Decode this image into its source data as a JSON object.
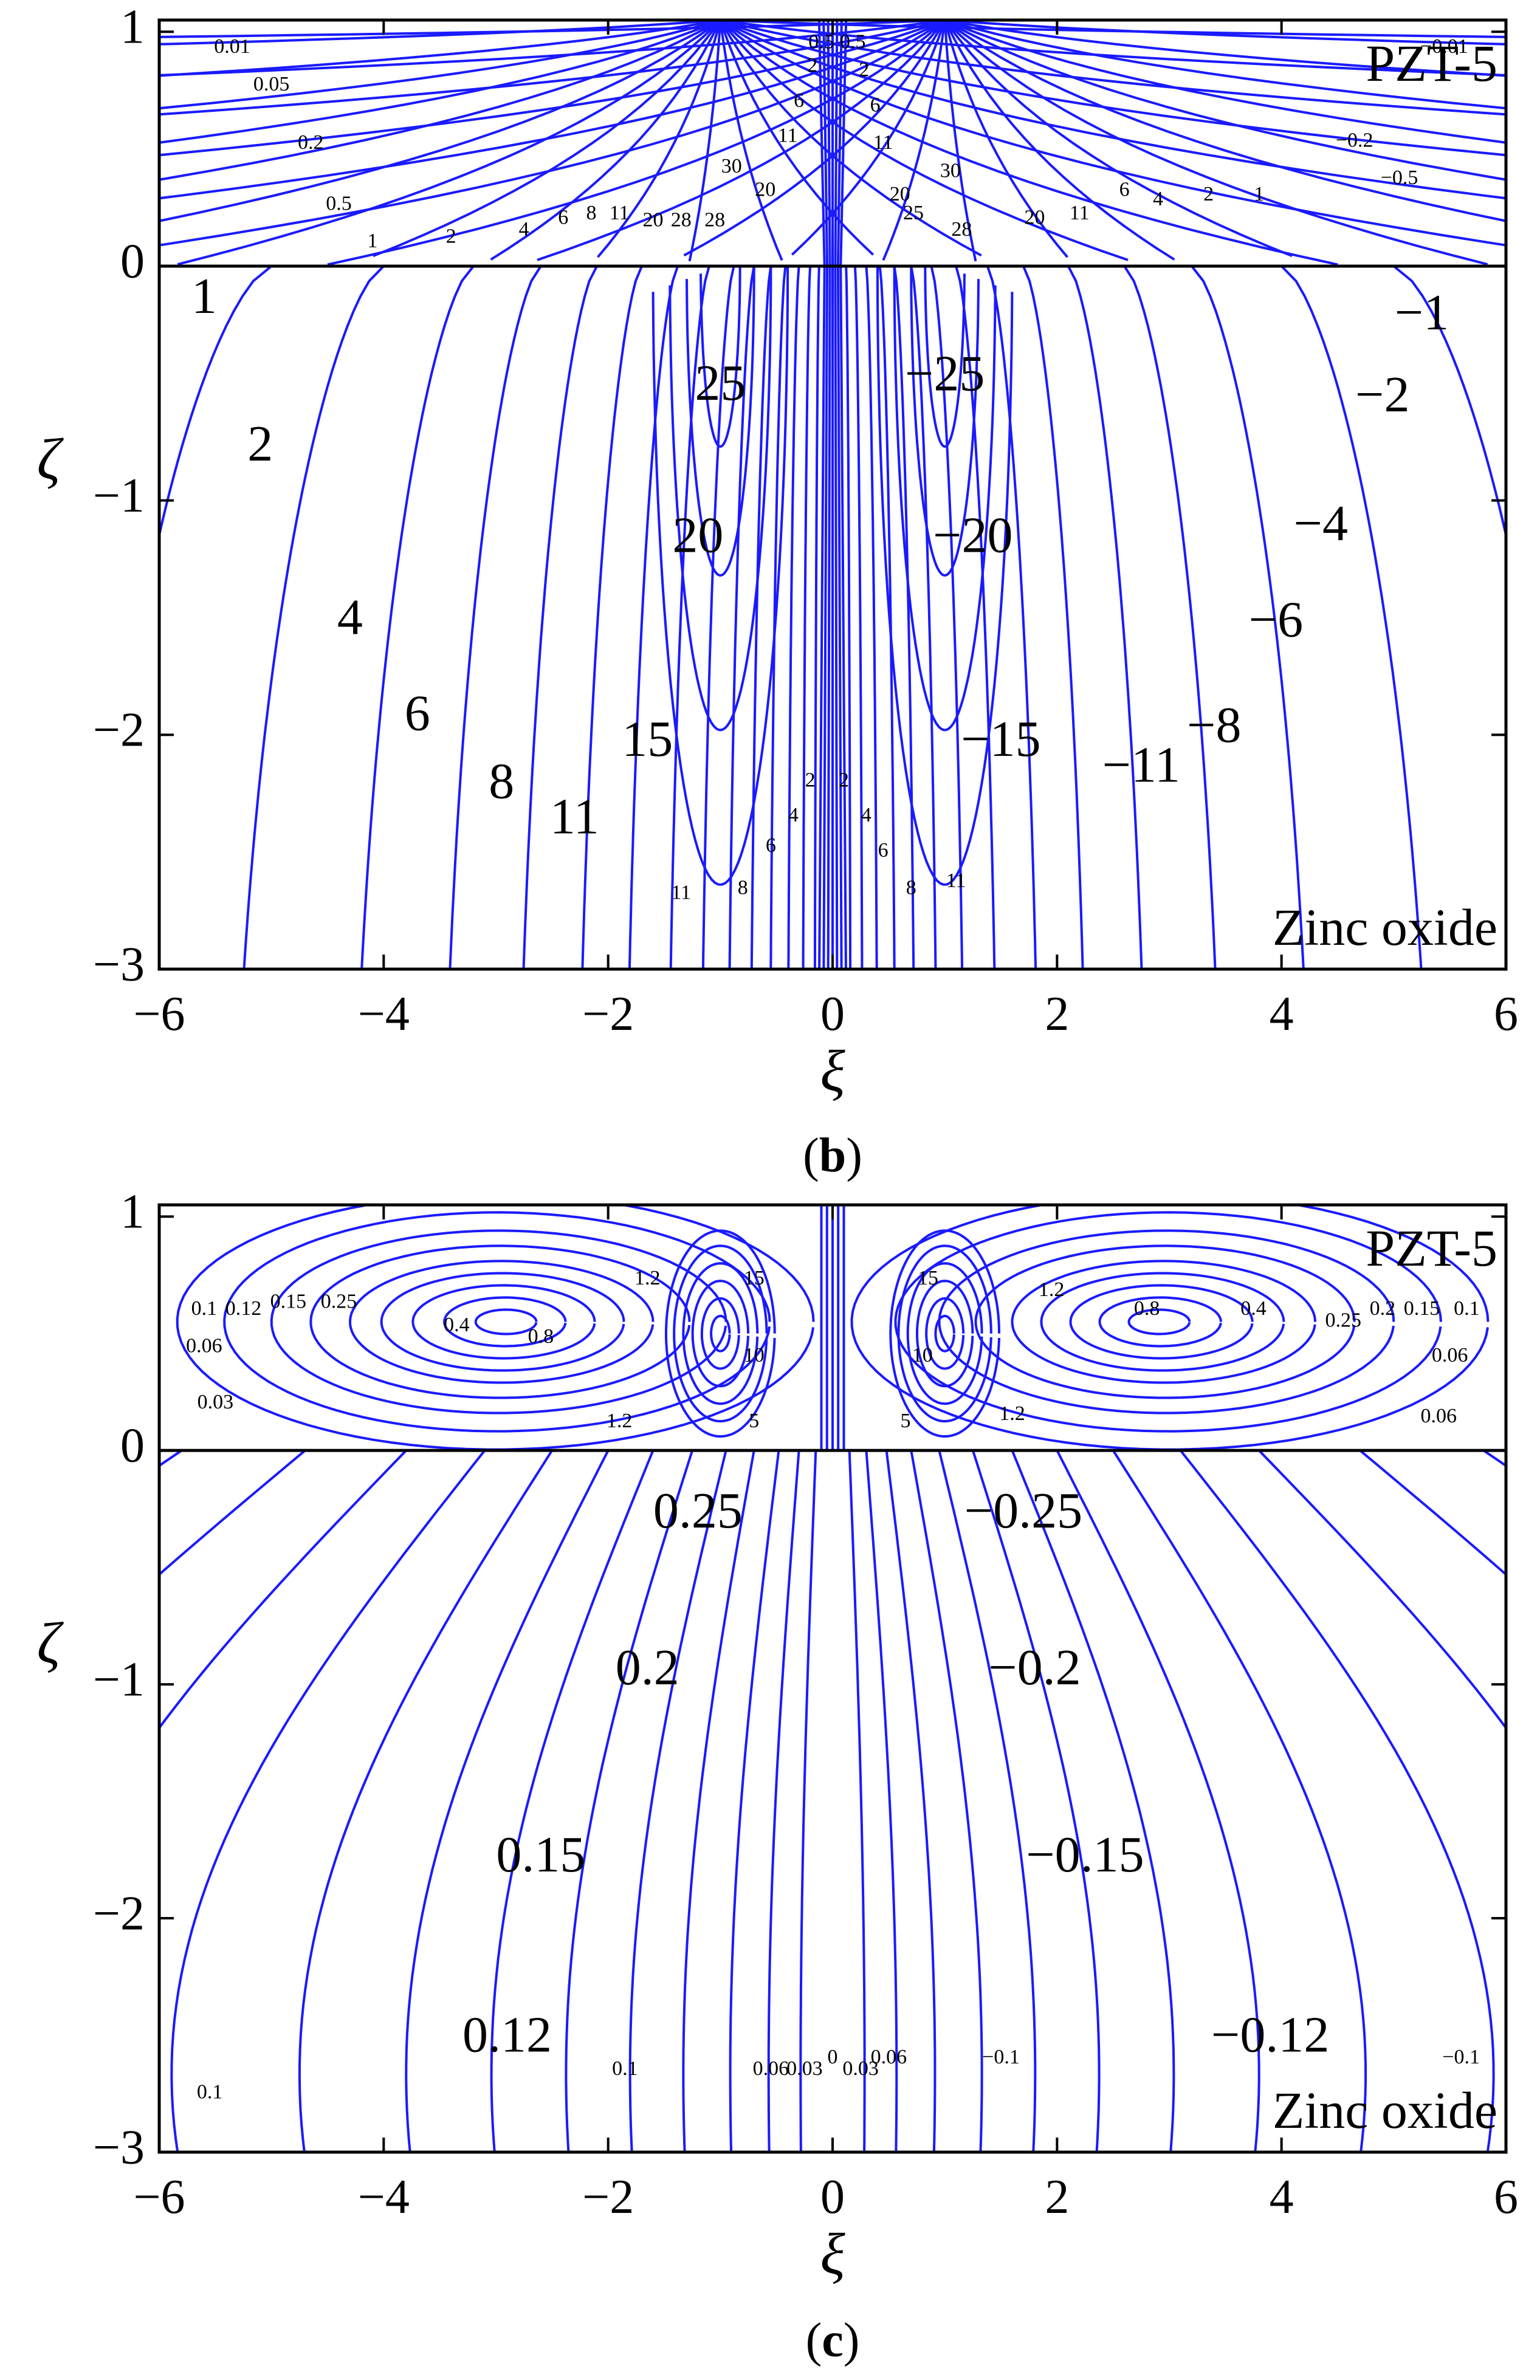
{
  "chart_data": [
    {
      "type": "contour",
      "panel_label": "b",
      "xlabel": "ξ",
      "ylabel": "ζ",
      "xlim": [
        -6,
        6
      ],
      "ylim": [
        -3,
        1.05
      ],
      "xticks": [
        -6,
        -4,
        -2,
        0,
        2,
        4,
        6
      ],
      "xtick_labels": [
        "−6",
        "−4",
        "−2",
        "0",
        "2",
        "4",
        "6"
      ],
      "yticks": [
        1,
        0,
        -1,
        -2,
        -3
      ],
      "ytick_labels": [
        "1",
        "0",
        "−1",
        "−2",
        "−3"
      ],
      "upper_material": "PZT-5",
      "lower_material": "Zinc oxide",
      "large_labels": [
        {
          "x": -5.6,
          "y": -0.15,
          "text": "1"
        },
        {
          "x": -5.1,
          "y": -0.78,
          "text": "2"
        },
        {
          "x": -4.3,
          "y": -1.52,
          "text": "4"
        },
        {
          "x": -3.7,
          "y": -1.93,
          "text": "6"
        },
        {
          "x": -2.95,
          "y": -2.22,
          "text": "8"
        },
        {
          "x": -2.3,
          "y": -2.37,
          "text": "11"
        },
        {
          "x": -1.65,
          "y": -2.04,
          "text": "15"
        },
        {
          "x": -1.2,
          "y": -1.17,
          "text": "20"
        },
        {
          "x": -1.0,
          "y": -0.52,
          "text": "25"
        },
        {
          "x": 1.0,
          "y": -0.48,
          "text": "−25"
        },
        {
          "x": 1.25,
          "y": -1.17,
          "text": "−20"
        },
        {
          "x": 1.5,
          "y": -2.04,
          "text": "−15"
        },
        {
          "x": 2.75,
          "y": -2.15,
          "text": "−11"
        },
        {
          "x": 3.4,
          "y": -1.98,
          "text": "−8"
        },
        {
          "x": 3.95,
          "y": -1.53,
          "text": "−6"
        },
        {
          "x": 4.35,
          "y": -1.12,
          "text": "−4"
        },
        {
          "x": 4.9,
          "y": -0.57,
          "text": "−2"
        },
        {
          "x": 5.25,
          "y": -0.22,
          "text": "−1"
        }
      ],
      "small_labels": [
        {
          "x": -5.35,
          "y": 0.93,
          "text": "0.01"
        },
        {
          "x": -5.0,
          "y": 0.77,
          "text": "0.05"
        },
        {
          "x": -4.65,
          "y": 0.52,
          "text": "0.2"
        },
        {
          "x": -4.4,
          "y": 0.26,
          "text": "0.5"
        },
        {
          "x": -4.1,
          "y": 0.1,
          "text": "1"
        },
        {
          "x": -3.4,
          "y": 0.12,
          "text": "2"
        },
        {
          "x": -2.75,
          "y": 0.15,
          "text": "4"
        },
        {
          "x": -2.4,
          "y": 0.2,
          "text": "6"
        },
        {
          "x": -2.15,
          "y": 0.22,
          "text": "8"
        },
        {
          "x": -1.9,
          "y": 0.22,
          "text": "11"
        },
        {
          "x": -1.6,
          "y": 0.19,
          "text": "20"
        },
        {
          "x": -1.35,
          "y": 0.19,
          "text": "28"
        },
        {
          "x": -1.05,
          "y": 0.19,
          "text": "28"
        },
        {
          "x": -0.9,
          "y": 0.42,
          "text": "30"
        },
        {
          "x": -0.6,
          "y": 0.32,
          "text": "20"
        },
        {
          "x": -0.4,
          "y": 0.55,
          "text": "11"
        },
        {
          "x": -0.3,
          "y": 0.7,
          "text": "6"
        },
        {
          "x": -0.18,
          "y": 0.85,
          "text": "2"
        },
        {
          "x": -0.1,
          "y": 0.95,
          "text": "0.5"
        },
        {
          "x": 0.18,
          "y": 0.95,
          "text": "0.5"
        },
        {
          "x": 0.28,
          "y": 0.83,
          "text": "2"
        },
        {
          "x": 0.38,
          "y": 0.68,
          "text": "6"
        },
        {
          "x": 0.45,
          "y": 0.52,
          "text": "11"
        },
        {
          "x": 0.6,
          "y": 0.3,
          "text": "20"
        },
        {
          "x": 0.72,
          "y": 0.22,
          "text": "25"
        },
        {
          "x": 1.05,
          "y": 0.4,
          "text": "30"
        },
        {
          "x": 1.15,
          "y": 0.15,
          "text": "28"
        },
        {
          "x": 1.8,
          "y": 0.2,
          "text": "20"
        },
        {
          "x": 2.2,
          "y": 0.22,
          "text": "11"
        },
        {
          "x": 2.6,
          "y": 0.32,
          "text": "6"
        },
        {
          "x": 2.9,
          "y": 0.28,
          "text": "4"
        },
        {
          "x": 3.35,
          "y": 0.3,
          "text": "2"
        },
        {
          "x": 3.8,
          "y": 0.3,
          "text": "1"
        },
        {
          "x": 4.65,
          "y": 0.53,
          "text": "−0.2"
        },
        {
          "x": 5.05,
          "y": 0.37,
          "text": "−0.5"
        },
        {
          "x": 5.45,
          "y": 0.93,
          "text": "−0.01"
        },
        {
          "x": -1.35,
          "y": -2.68,
          "text": "11"
        },
        {
          "x": -0.8,
          "y": -2.66,
          "text": "8"
        },
        {
          "x": -0.55,
          "y": -2.48,
          "text": "6"
        },
        {
          "x": -0.35,
          "y": -2.35,
          "text": "4"
        },
        {
          "x": -0.2,
          "y": -2.2,
          "text": "2"
        },
        {
          "x": 0.1,
          "y": -2.2,
          "text": "2"
        },
        {
          "x": 0.3,
          "y": -2.35,
          "text": "4"
        },
        {
          "x": 0.45,
          "y": -2.5,
          "text": "6"
        },
        {
          "x": 0.7,
          "y": -2.66,
          "text": "8"
        },
        {
          "x": 1.1,
          "y": -2.63,
          "text": "11"
        }
      ]
    },
    {
      "type": "contour",
      "panel_label": "c",
      "xlabel": "ξ",
      "ylabel": "ζ",
      "xlim": [
        -6,
        6
      ],
      "ylim": [
        -3,
        1.05
      ],
      "xticks": [
        -6,
        -4,
        -2,
        0,
        2,
        4,
        6
      ],
      "xtick_labels": [
        "−6",
        "−4",
        "−2",
        "0",
        "2",
        "4",
        "6"
      ],
      "yticks": [
        1,
        0,
        -1,
        -2,
        -3
      ],
      "ytick_labels": [
        "1",
        "0",
        "−1",
        "−2",
        "−3"
      ],
      "upper_material": "PZT-5",
      "lower_material": "Zinc oxide",
      "large_labels": [
        {
          "x": -1.2,
          "y": -0.28,
          "text": "0.25"
        },
        {
          "x": -1.65,
          "y": -0.95,
          "text": "0.2"
        },
        {
          "x": -2.6,
          "y": -1.75,
          "text": "0.15"
        },
        {
          "x": -2.9,
          "y": -2.52,
          "text": "0.12"
        },
        {
          "x": 1.7,
          "y": -0.28,
          "text": "−0.25"
        },
        {
          "x": 1.8,
          "y": -0.95,
          "text": "−0.2"
        },
        {
          "x": 2.25,
          "y": -1.75,
          "text": "−0.15"
        },
        {
          "x": 3.9,
          "y": -2.52,
          "text": "−0.12"
        }
      ],
      "small_labels": [
        {
          "x": -5.6,
          "y": 0.6,
          "text": "0.1"
        },
        {
          "x": -5.25,
          "y": 0.6,
          "text": "0.12"
        },
        {
          "x": -4.85,
          "y": 0.63,
          "text": "0.15"
        },
        {
          "x": -4.4,
          "y": 0.63,
          "text": "0.25"
        },
        {
          "x": -3.35,
          "y": 0.53,
          "text": "0.4"
        },
        {
          "x": -2.6,
          "y": 0.48,
          "text": "0.8"
        },
        {
          "x": -1.65,
          "y": 0.73,
          "text": "1.2"
        },
        {
          "x": -5.6,
          "y": 0.44,
          "text": "0.06"
        },
        {
          "x": -5.5,
          "y": 0.2,
          "text": "0.03"
        },
        {
          "x": -1.9,
          "y": 0.12,
          "text": "1.2"
        },
        {
          "x": -0.7,
          "y": 0.73,
          "text": "15"
        },
        {
          "x": -0.7,
          "y": 0.4,
          "text": "10"
        },
        {
          "x": -0.7,
          "y": 0.12,
          "text": "5"
        },
        {
          "x": 0.65,
          "y": 0.12,
          "text": "5"
        },
        {
          "x": 0.8,
          "y": 0.4,
          "text": "10"
        },
        {
          "x": 0.85,
          "y": 0.73,
          "text": "15"
        },
        {
          "x": 1.6,
          "y": 0.15,
          "text": "1.2"
        },
        {
          "x": 1.95,
          "y": 0.68,
          "text": "1.2"
        },
        {
          "x": 2.8,
          "y": 0.6,
          "text": "0.8"
        },
        {
          "x": 3.75,
          "y": 0.6,
          "text": "0.4"
        },
        {
          "x": 4.55,
          "y": 0.55,
          "text": "0.25"
        },
        {
          "x": 4.9,
          "y": 0.6,
          "text": "0.2"
        },
        {
          "x": 5.25,
          "y": 0.6,
          "text": "0.15"
        },
        {
          "x": 5.65,
          "y": 0.6,
          "text": "0.1"
        },
        {
          "x": 5.5,
          "y": 0.4,
          "text": "0.06"
        },
        {
          "x": 5.4,
          "y": 0.14,
          "text": "0.06"
        },
        {
          "x": -5.55,
          "y": -2.75,
          "text": "0.1"
        },
        {
          "x": -1.85,
          "y": -2.65,
          "text": "0.1"
        },
        {
          "x": -0.55,
          "y": -2.65,
          "text": "0.06"
        },
        {
          "x": -0.25,
          "y": -2.65,
          "text": "0.03"
        },
        {
          "x": 0.0,
          "y": -2.6,
          "text": "0"
        },
        {
          "x": 0.25,
          "y": -2.65,
          "text": "0.03"
        },
        {
          "x": 0.5,
          "y": -2.6,
          "text": "0.06"
        },
        {
          "x": 1.5,
          "y": -2.6,
          "text": "−0.1"
        },
        {
          "x": 5.6,
          "y": -2.6,
          "text": "−0.1"
        }
      ]
    }
  ]
}
